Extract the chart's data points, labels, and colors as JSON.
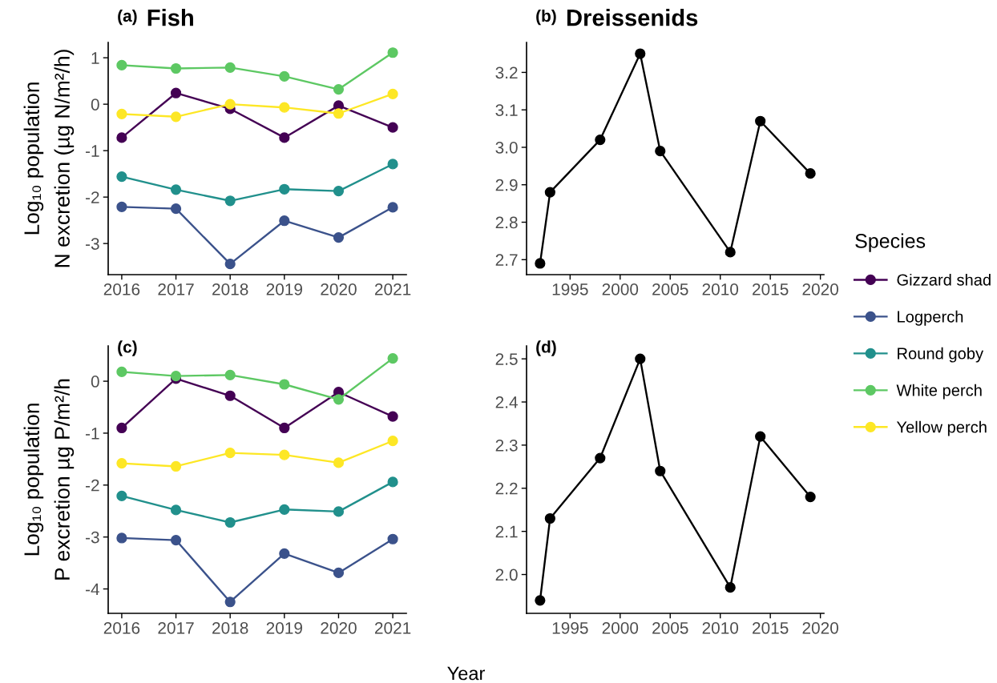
{
  "chart_data": [
    {
      "type": "line",
      "title": "Fish",
      "annotations": [
        "(a)"
      ],
      "ylabel": "Log₁₀ population\nN excretion (µg N/m²/h)",
      "x": [
        2016,
        2017,
        2018,
        2019,
        2020,
        2021
      ],
      "xlim": [
        2015.75,
        2021.25
      ],
      "xticks": [
        2016,
        2017,
        2018,
        2019,
        2020,
        2021
      ],
      "ylim": [
        -3.67,
        1.33
      ],
      "yticks": [
        -3,
        -2,
        -1,
        0,
        1
      ],
      "marker": "circle",
      "line_style": "solid",
      "legend": "right",
      "legend_title": "Species",
      "series": [
        {
          "name": "Gizzard shad",
          "color": "#440154",
          "values": [
            -0.72,
            0.24,
            -0.1,
            -0.72,
            -0.03,
            -0.5
          ]
        },
        {
          "name": "Logperch",
          "color": "#3b528b",
          "values": [
            -2.21,
            -2.25,
            -3.44,
            -2.51,
            -2.87,
            -2.22
          ]
        },
        {
          "name": "Round goby",
          "color": "#21908c",
          "values": [
            -1.56,
            -1.84,
            -2.08,
            -1.83,
            -1.87,
            -1.29
          ]
        },
        {
          "name": "White perch",
          "color": "#5dc863",
          "values": [
            0.84,
            0.77,
            0.79,
            0.6,
            0.32,
            1.11
          ]
        },
        {
          "name": "Yellow perch",
          "color": "#fde725",
          "values": [
            -0.21,
            -0.27,
            0.0,
            -0.07,
            -0.2,
            0.22
          ]
        }
      ]
    },
    {
      "type": "line",
      "title": "Dreissenids",
      "annotations": [
        "(b)"
      ],
      "x": [
        1992,
        1993,
        1998,
        2002,
        2004,
        2011,
        2014,
        2019
      ],
      "xlim": [
        1990.65,
        2020.35
      ],
      "xticks": [
        1995,
        2000,
        2005,
        2010,
        2015,
        2020
      ],
      "ylim": [
        2.66,
        3.28
      ],
      "yticks": [
        2.7,
        2.8,
        2.9,
        {
          "value": 3,
          "label": "3.0"
        },
        3.1,
        3.2
      ],
      "marker": "circle",
      "line_style": "solid",
      "series": [
        {
          "color": "#000000",
          "values": [
            2.69,
            2.88,
            3.02,
            3.25,
            2.99,
            2.72,
            3.07,
            2.93
          ]
        }
      ]
    },
    {
      "type": "line",
      "annotations": [
        "(c)"
      ],
      "ylabel": "Log₁₀ population\nP excretion µg P/m²/h",
      "xlabel": "Year",
      "x": [
        2016,
        2017,
        2018,
        2019,
        2020,
        2021
      ],
      "xlim": [
        2015.75,
        2021.25
      ],
      "xticks": [
        2016,
        2017,
        2018,
        2019,
        2020,
        2021
      ],
      "ylim": [
        -4.47,
        0.68
      ],
      "yticks": [
        -4,
        -3,
        -2,
        -1,
        0
      ],
      "marker": "circle",
      "line_style": "solid",
      "legend": "right",
      "series": [
        {
          "name": "Gizzard shad",
          "color": "#440154",
          "values": [
            -0.9,
            0.05,
            -0.28,
            -0.9,
            -0.21,
            -0.68
          ]
        },
        {
          "name": "Logperch",
          "color": "#3b528b",
          "values": [
            -3.02,
            -3.06,
            -4.25,
            -3.32,
            -3.69,
            -3.04
          ]
        },
        {
          "name": "Round goby",
          "color": "#21908c",
          "values": [
            -2.21,
            -2.48,
            -2.72,
            -2.47,
            -2.51,
            -1.94
          ]
        },
        {
          "name": "White perch",
          "color": "#5dc863",
          "values": [
            0.18,
            0.1,
            0.12,
            -0.06,
            -0.35,
            0.44
          ]
        },
        {
          "name": "Yellow perch",
          "color": "#fde725",
          "values": [
            -1.58,
            -1.64,
            -1.38,
            -1.42,
            -1.57,
            -1.15
          ]
        }
      ]
    },
    {
      "type": "line",
      "annotations": [
        "(d)"
      ],
      "x": [
        1992,
        1993,
        1998,
        2002,
        2004,
        2011,
        2014,
        2019
      ],
      "xlim": [
        1990.65,
        2020.35
      ],
      "xticks": [
        1995,
        2000,
        2005,
        2010,
        2015,
        2020
      ],
      "ylim": [
        1.91,
        2.53
      ],
      "yticks": [
        {
          "value": 2,
          "label": "2.0"
        },
        2.1,
        2.2,
        2.3,
        2.4,
        2.5
      ],
      "marker": "circle",
      "line_style": "solid",
      "series": [
        {
          "color": "#000000",
          "values": [
            1.94,
            2.13,
            2.27,
            2.5,
            2.24,
            1.97,
            2.32,
            2.18
          ]
        }
      ]
    }
  ]
}
